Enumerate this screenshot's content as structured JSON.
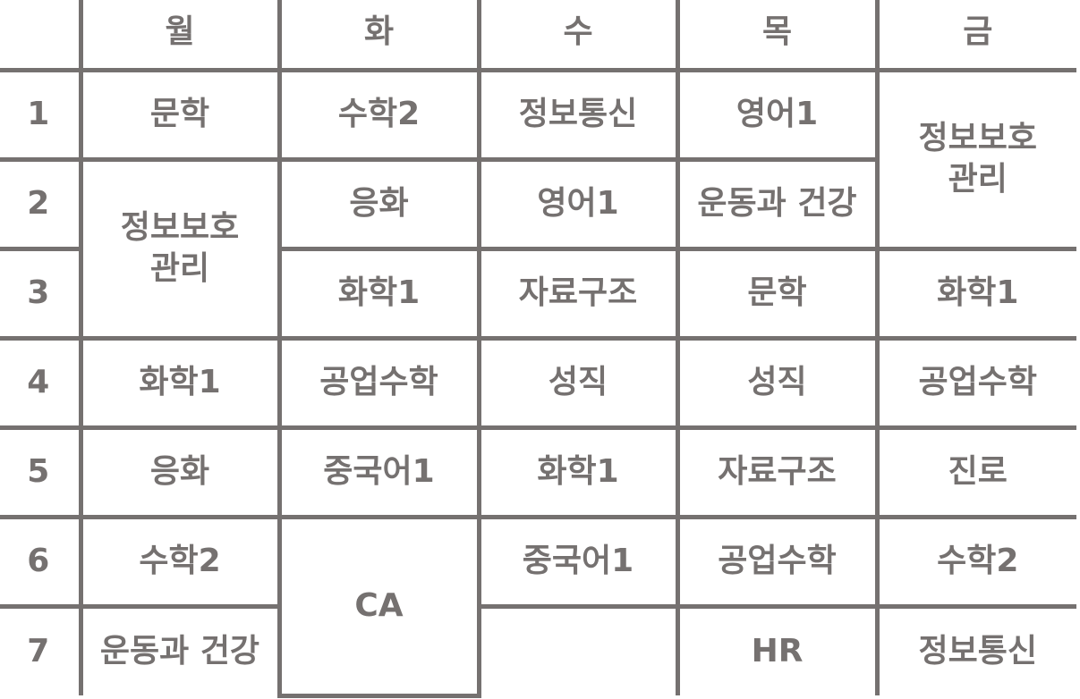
{
  "days": [
    "월",
    "화",
    "수",
    "목",
    "금"
  ],
  "periods": [
    "1",
    "2",
    "3",
    "4",
    "5",
    "6",
    "7"
  ],
  "schedule": {
    "mon": {
      "p1": "문학",
      "p2_3": "정보보호\n관리",
      "p4": "화학1",
      "p5": "응화",
      "p6": "수학2",
      "p7": "운동과 건강"
    },
    "tue": {
      "p1": "수학2",
      "p2": "응화",
      "p3": "화학1",
      "p4": "공업수학",
      "p5": "중국어1",
      "p6_7": "CA"
    },
    "wed": {
      "p1": "정보통신",
      "p2": "영어1",
      "p3": "자료구조",
      "p4": "성직",
      "p5": "화학1",
      "p6": "중국어1",
      "p7": ""
    },
    "thu": {
      "p1": "영어1",
      "p2": "운동과 건강",
      "p3": "문학",
      "p4": "성직",
      "p5": "자료구조",
      "p6": "공업수학",
      "p7": "HR"
    },
    "fri": {
      "p1_2": "정보보호\n관리",
      "p3": "화학1",
      "p4": "공업수학",
      "p5": "진로",
      "p6": "수학2",
      "p7": "정보통신"
    }
  },
  "colors": {
    "grid": "#757170",
    "text": "#757170",
    "background": "#ffffff"
  }
}
